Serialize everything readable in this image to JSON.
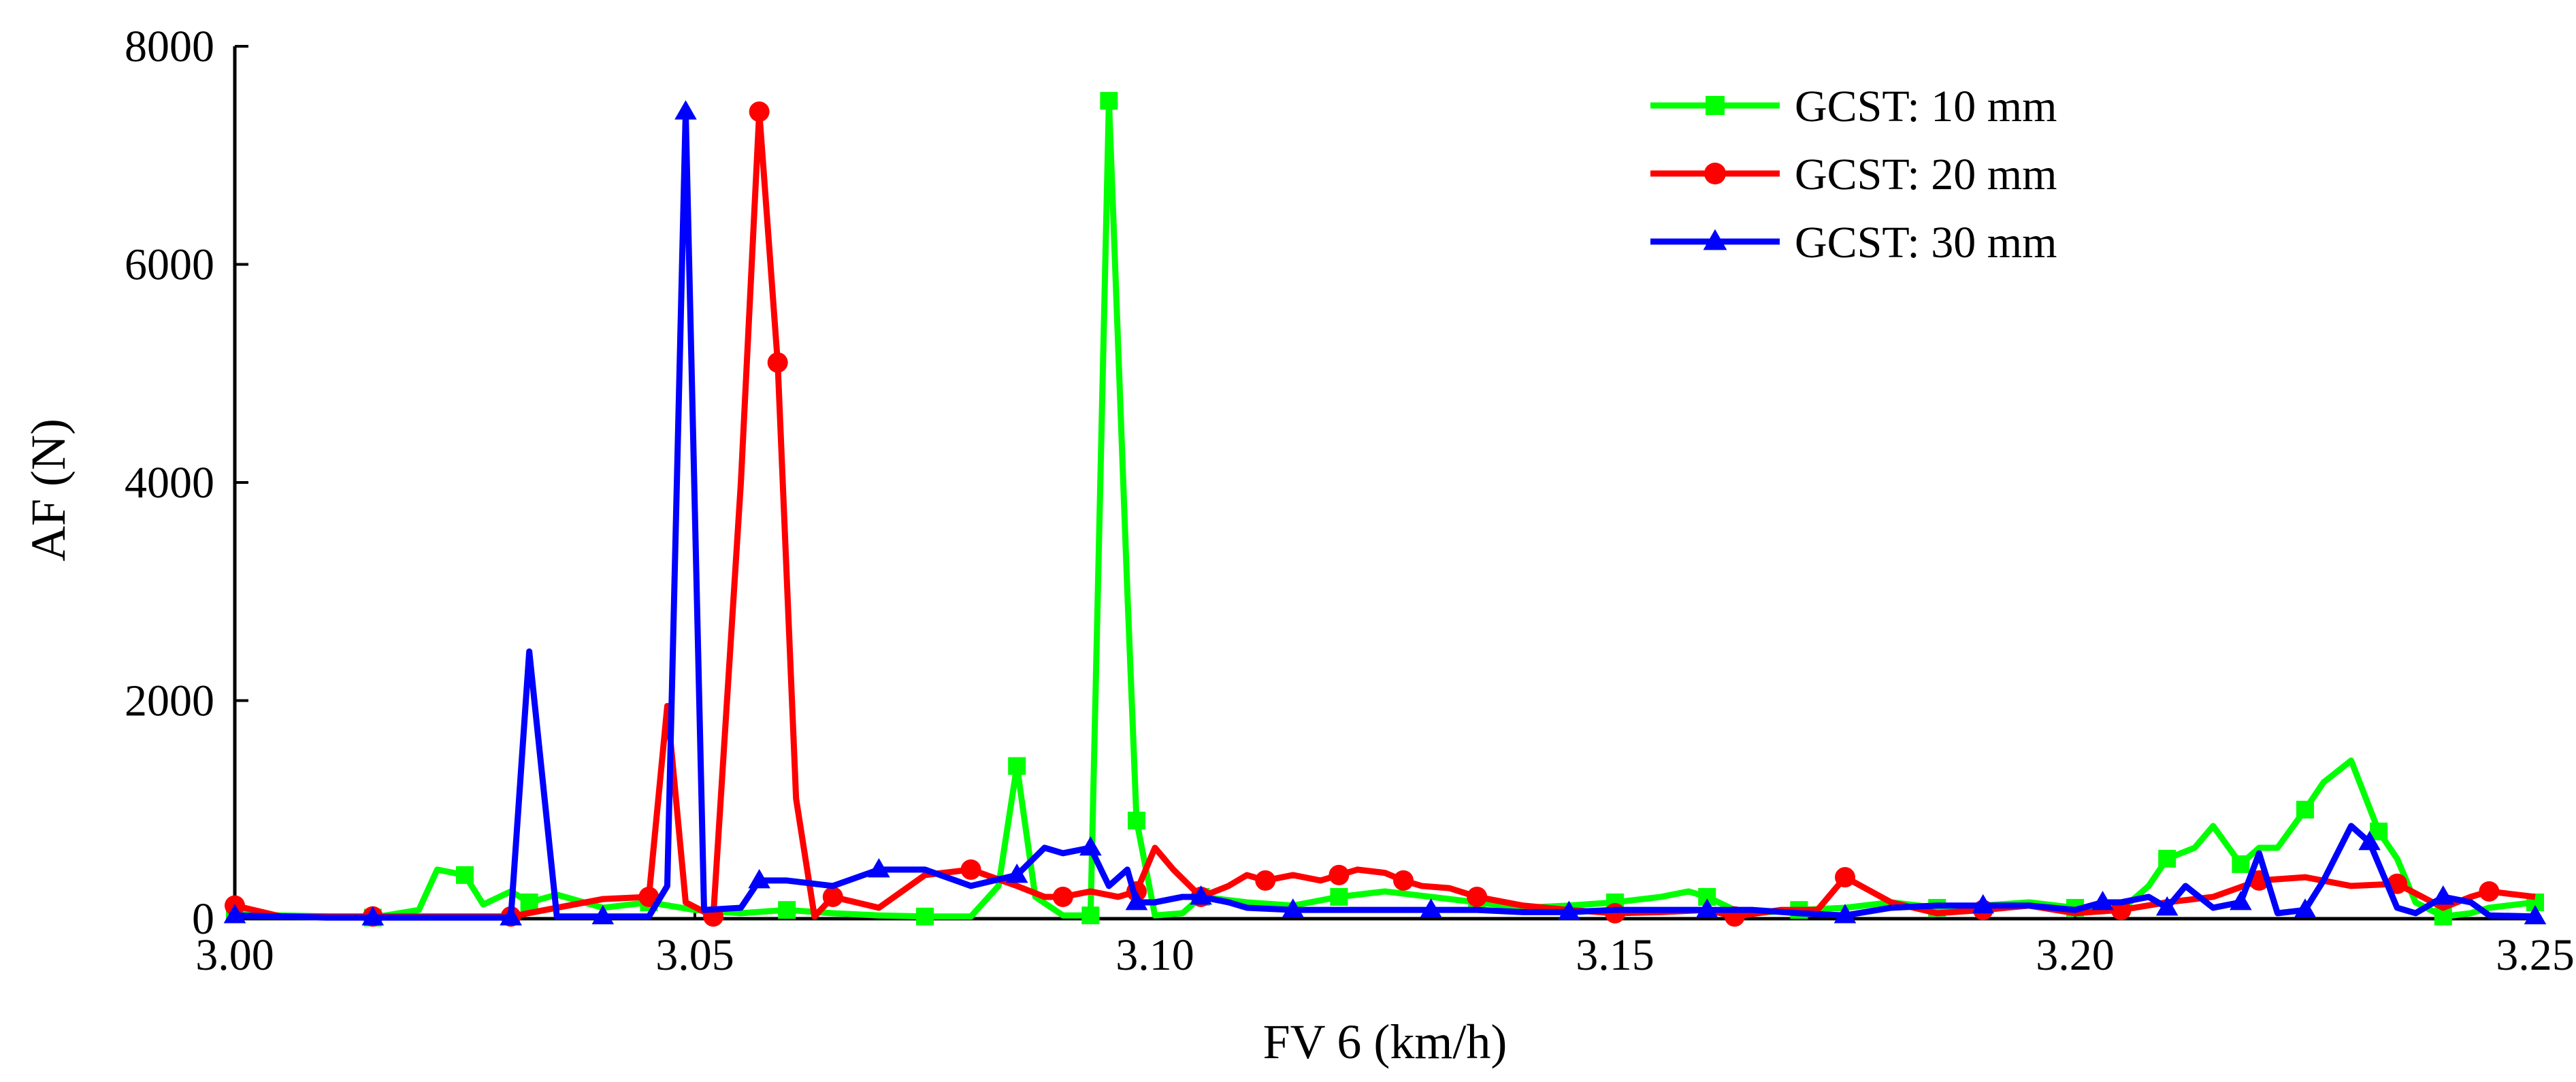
{
  "chart_data": {
    "type": "line",
    "title": "",
    "xlabel": "FV 6 (km/h)",
    "ylabel": "AF (N)",
    "xlim": [
      3.0,
      3.25
    ],
    "ylim": [
      0,
      8000
    ],
    "x_ticks": [
      3.0,
      3.05,
      3.1,
      3.15,
      3.2,
      3.25
    ],
    "x_tick_labels": [
      "3.00",
      "3.05",
      "3.10",
      "3.15",
      "3.20",
      "3.25"
    ],
    "y_ticks": [
      0,
      2000,
      4000,
      6000,
      8000
    ],
    "y_tick_labels": [
      "0",
      "2000",
      "4000",
      "6000",
      "8000"
    ],
    "grid": false,
    "legend_position": "top-right",
    "series": [
      {
        "name": "GCST: 10 mm",
        "color": "#00ff00",
        "marker": "square",
        "x": [
          3.0,
          3.005,
          3.01,
          3.015,
          3.02,
          3.022,
          3.025,
          3.027,
          3.03,
          3.032,
          3.035,
          3.04,
          3.045,
          3.05,
          3.055,
          3.06,
          3.065,
          3.07,
          3.075,
          3.08,
          3.083,
          3.085,
          3.087,
          3.09,
          3.093,
          3.095,
          3.097,
          3.098,
          3.1,
          3.103,
          3.105,
          3.11,
          3.115,
          3.12,
          3.125,
          3.13,
          3.135,
          3.14,
          3.145,
          3.15,
          3.155,
          3.158,
          3.16,
          3.163,
          3.165,
          3.17,
          3.175,
          3.18,
          3.185,
          3.19,
          3.195,
          3.2,
          3.205,
          3.208,
          3.21,
          3.213,
          3.215,
          3.218,
          3.22,
          3.222,
          3.225,
          3.227,
          3.23,
          3.233,
          3.235,
          3.237,
          3.24,
          3.243,
          3.245,
          3.25
        ],
        "values": [
          50,
          30,
          20,
          10,
          80,
          450,
          400,
          130,
          250,
          150,
          220,
          100,
          150,
          80,
          50,
          80,
          50,
          30,
          20,
          20,
          300,
          1400,
          200,
          30,
          30,
          7500,
          3000,
          900,
          30,
          50,
          200,
          150,
          120,
          200,
          250,
          200,
          150,
          100,
          120,
          150,
          200,
          250,
          200,
          80,
          50,
          80,
          100,
          150,
          100,
          120,
          150,
          100,
          80,
          300,
          550,
          650,
          850,
          500,
          650,
          650,
          1000,
          1250,
          1450,
          800,
          550,
          150,
          20,
          50,
          100,
          150
        ]
      },
      {
        "name": "GCST: 20 mm",
        "color": "#ff0000",
        "marker": "circle",
        "x": [
          3.0,
          3.005,
          3.01,
          3.015,
          3.02,
          3.025,
          3.03,
          3.035,
          3.04,
          3.045,
          3.047,
          3.049,
          3.052,
          3.055,
          3.057,
          3.059,
          3.061,
          3.063,
          3.065,
          3.07,
          3.075,
          3.08,
          3.085,
          3.088,
          3.09,
          3.093,
          3.096,
          3.098,
          3.1,
          3.102,
          3.105,
          3.108,
          3.11,
          3.112,
          3.115,
          3.118,
          3.12,
          3.122,
          3.125,
          3.127,
          3.129,
          3.132,
          3.135,
          3.14,
          3.145,
          3.15,
          3.155,
          3.16,
          3.163,
          3.168,
          3.172,
          3.175,
          3.18,
          3.185,
          3.19,
          3.195,
          3.2,
          3.205,
          3.21,
          3.215,
          3.22,
          3.225,
          3.23,
          3.235,
          3.24,
          3.243,
          3.245,
          3.25
        ],
        "values": [
          120,
          20,
          20,
          20,
          20,
          20,
          20,
          100,
          180,
          200,
          1950,
          150,
          20,
          4000,
          7400,
          5100,
          1100,
          20,
          200,
          100,
          400,
          450,
          300,
          200,
          200,
          250,
          200,
          250,
          650,
          450,
          200,
          300,
          400,
          350,
          400,
          350,
          400,
          450,
          420,
          350,
          300,
          280,
          200,
          120,
          80,
          50,
          60,
          80,
          20,
          80,
          80,
          380,
          150,
          50,
          80,
          120,
          50,
          80,
          150,
          200,
          350,
          380,
          300,
          320,
          100,
          200,
          250,
          200
        ]
      },
      {
        "name": "GCST: 30 mm",
        "color": "#0000ff",
        "marker": "triangle",
        "x": [
          3.0,
          3.005,
          3.01,
          3.015,
          3.02,
          3.025,
          3.03,
          3.032,
          3.035,
          3.04,
          3.045,
          3.047,
          3.049,
          3.051,
          3.055,
          3.057,
          3.06,
          3.065,
          3.07,
          3.075,
          3.08,
          3.085,
          3.088,
          3.09,
          3.093,
          3.095,
          3.097,
          3.098,
          3.1,
          3.103,
          3.105,
          3.108,
          3.11,
          3.115,
          3.12,
          3.125,
          3.13,
          3.135,
          3.14,
          3.145,
          3.15,
          3.155,
          3.16,
          3.165,
          3.17,
          3.175,
          3.18,
          3.185,
          3.19,
          3.195,
          3.2,
          3.203,
          3.205,
          3.208,
          3.21,
          3.212,
          3.215,
          3.218,
          3.22,
          3.222,
          3.225,
          3.227,
          3.23,
          3.232,
          3.235,
          3.237,
          3.24,
          3.243,
          3.245,
          3.25
        ],
        "values": [
          30,
          20,
          10,
          10,
          10,
          10,
          10,
          2450,
          20,
          20,
          20,
          300,
          7400,
          80,
          100,
          350,
          350,
          300,
          450,
          450,
          300,
          400,
          650,
          600,
          650,
          300,
          450,
          150,
          150,
          200,
          200,
          150,
          100,
          80,
          80,
          80,
          80,
          80,
          60,
          60,
          80,
          80,
          80,
          80,
          50,
          30,
          100,
          120,
          120,
          120,
          80,
          150,
          150,
          200,
          100,
          300,
          100,
          150,
          600,
          50,
          80,
          350,
          850,
          700,
          100,
          50,
          200,
          150,
          30,
          20
        ]
      }
    ]
  }
}
